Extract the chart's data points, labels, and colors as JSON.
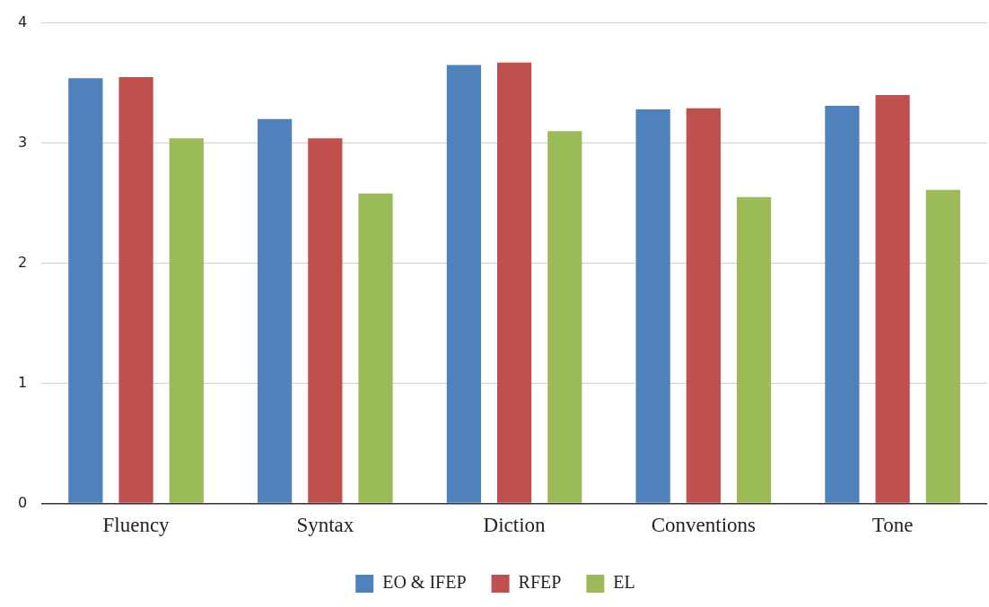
{
  "chart_data": {
    "type": "bar",
    "categories": [
      "Fluency",
      "Syntax",
      "Diction",
      "Conventions",
      "Tone"
    ],
    "series": [
      {
        "name": "EO & IFEP",
        "color": "#4f81bd",
        "values": [
          3.54,
          3.2,
          3.65,
          3.28,
          3.31
        ]
      },
      {
        "name": "RFEP",
        "color": "#c0504d",
        "values": [
          3.55,
          3.04,
          3.67,
          3.29,
          3.4
        ]
      },
      {
        "name": "EL",
        "color": "#9bbb59",
        "values": [
          3.04,
          2.58,
          3.1,
          2.55,
          2.61
        ]
      }
    ],
    "ylim": [
      0,
      4
    ],
    "yticks": [
      0,
      1,
      2,
      3,
      4
    ],
    "grid": "y",
    "legend": "bottom"
  }
}
